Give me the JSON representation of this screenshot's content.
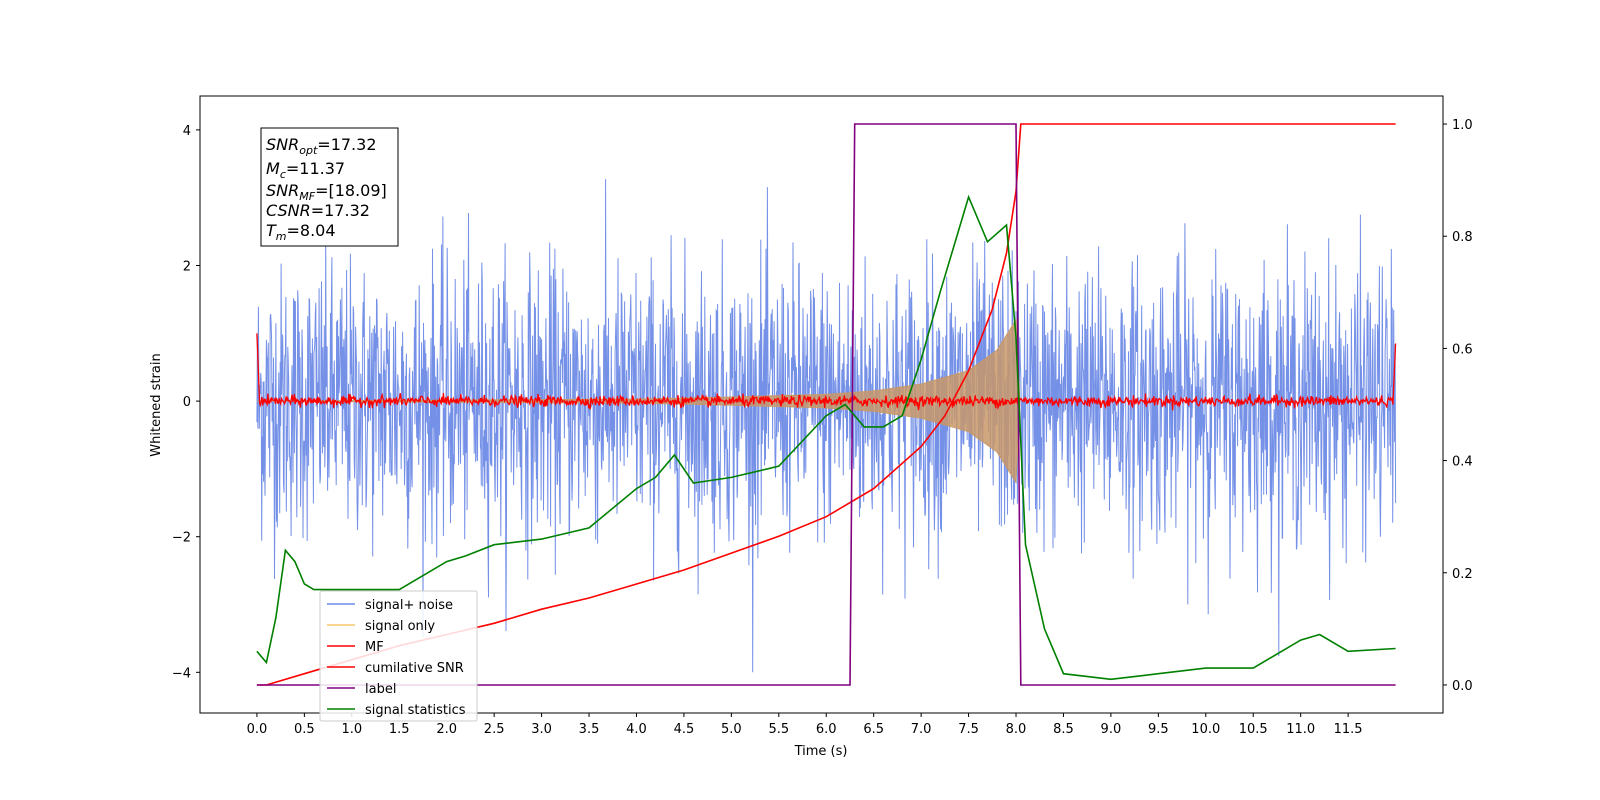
{
  "chart_data": {
    "type": "line",
    "xlabel": "Time (s)",
    "ylabel": "Whitened strain",
    "xlim": [
      -0.6,
      12.5
    ],
    "ylim": [
      -4.6,
      4.5
    ],
    "ylim_right": [
      -0.05,
      1.05
    ],
    "grid": false,
    "legend_position": "lower-left",
    "x_ticks": [
      "0.0",
      "0.5",
      "1.0",
      "1.5",
      "2.0",
      "2.5",
      "3.0",
      "3.5",
      "4.0",
      "4.5",
      "5.0",
      "5.5",
      "6.0",
      "6.5",
      "7.0",
      "7.5",
      "8.0",
      "8.5",
      "9.0",
      "9.5",
      "10.0",
      "10.5",
      "11.0",
      "11.5"
    ],
    "y_ticks_left": [
      "4",
      "2",
      "0",
      "−2",
      "−4"
    ],
    "y_ticks_right": [
      "1.0",
      "0.8",
      "0.6",
      "0.4",
      "0.2",
      "0.0"
    ],
    "annotation": {
      "snr_opt": "=17.32",
      "mc": "=11.37",
      "snr_mf": "=[18.09]",
      "csnr": "=17.32",
      "tm": "=8.04"
    },
    "series": [
      {
        "name": "signal+ noise",
        "color": "#6d8ae6",
        "axis": "left",
        "description_values": {
          "x_range": [
            0.0,
            12.0
          ],
          "std": 1.0,
          "peak_abs": 4.0
        }
      },
      {
        "name": "signal only",
        "color": "#c89868",
        "axis": "left",
        "envelope": {
          "t": [
            0.0,
            4.0,
            5.0,
            6.0,
            6.5,
            7.0,
            7.5,
            7.8,
            8.0,
            8.04
          ],
          "amp": [
            0.0,
            0.03,
            0.06,
            0.1,
            0.15,
            0.25,
            0.45,
            0.75,
            1.2,
            0.0
          ]
        }
      },
      {
        "name": "MF",
        "color": "#ff0000",
        "axis": "left",
        "level": 0.0,
        "noise_amp": 0.1,
        "edge_values": {
          "start": 1.0,
          "end": 0.85
        }
      },
      {
        "name": "cumilative SNR",
        "color": "#ff0000",
        "axis": "right",
        "x": [
          0.0,
          0.1,
          0.5,
          1.0,
          1.5,
          2.0,
          2.5,
          3.0,
          3.5,
          4.0,
          4.5,
          5.0,
          5.5,
          6.0,
          6.5,
          7.0,
          7.25,
          7.5,
          7.75,
          7.9,
          8.0,
          8.05,
          12.0
        ],
        "y": [
          0.0,
          0.0,
          0.02,
          0.045,
          0.07,
          0.09,
          0.11,
          0.135,
          0.155,
          0.18,
          0.205,
          0.235,
          0.265,
          0.3,
          0.35,
          0.425,
          0.48,
          0.56,
          0.67,
          0.77,
          0.88,
          1.0,
          1.0
        ]
      },
      {
        "name": "label",
        "color": "#800080",
        "axis": "right",
        "x": [
          0.0,
          6.25,
          6.3,
          8.0,
          8.05,
          12.0
        ],
        "y": [
          0.0,
          0.0,
          1.0,
          1.0,
          0.0,
          0.0
        ]
      },
      {
        "name": "signal statistics",
        "color": "#008000",
        "axis": "right",
        "x": [
          0.0,
          0.1,
          0.2,
          0.3,
          0.4,
          0.5,
          0.6,
          0.8,
          1.0,
          1.5,
          2.0,
          2.2,
          2.5,
          3.0,
          3.5,
          4.0,
          4.2,
          4.4,
          4.6,
          5.0,
          5.5,
          6.0,
          6.2,
          6.4,
          6.6,
          6.8,
          7.0,
          7.2,
          7.5,
          7.7,
          7.9,
          8.0,
          8.1,
          8.3,
          8.5,
          9.0,
          9.5,
          10.0,
          10.5,
          11.0,
          11.2,
          11.5,
          12.0
        ],
        "y": [
          0.06,
          0.04,
          0.12,
          0.24,
          0.22,
          0.18,
          0.17,
          0.17,
          0.17,
          0.17,
          0.22,
          0.23,
          0.25,
          0.26,
          0.28,
          0.35,
          0.37,
          0.41,
          0.36,
          0.37,
          0.39,
          0.48,
          0.5,
          0.46,
          0.46,
          0.48,
          0.58,
          0.7,
          0.87,
          0.79,
          0.82,
          0.62,
          0.25,
          0.1,
          0.02,
          0.01,
          0.02,
          0.03,
          0.03,
          0.08,
          0.09,
          0.06,
          0.065
        ]
      }
    ]
  }
}
